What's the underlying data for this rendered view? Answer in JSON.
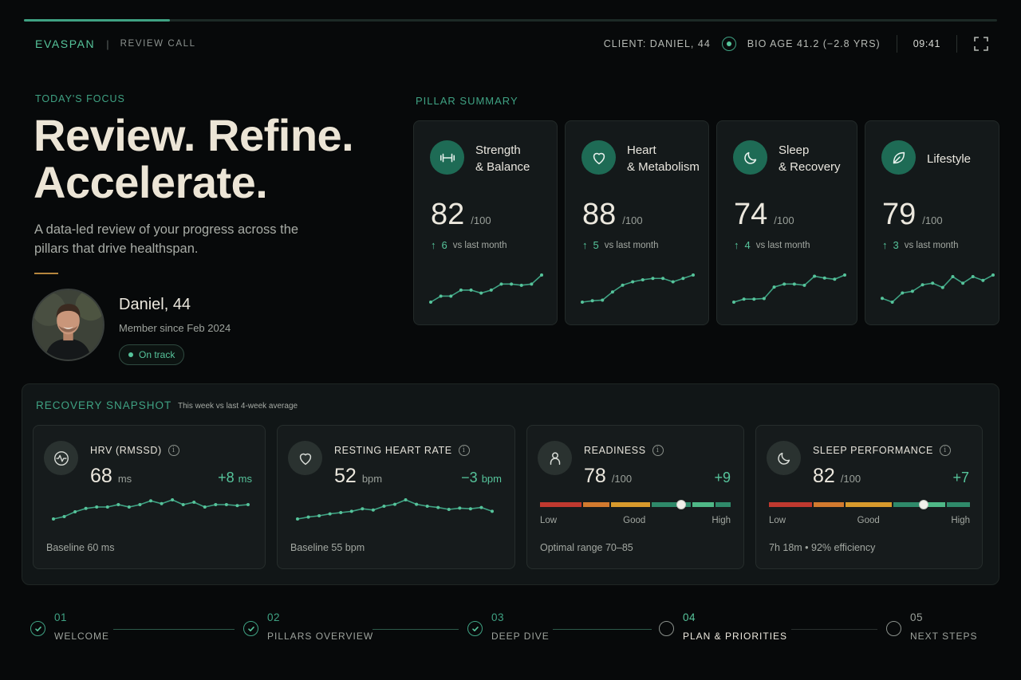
{
  "header": {
    "brand": "EVASPAN",
    "separator": "|",
    "section": "REVIEW CALL",
    "client": "CLIENT: DANIEL, 44",
    "bio_age": "BIO AGE 41.2 (−2.8 YRS)",
    "time": "09:41",
    "session_progress": 0.15
  },
  "hero": {
    "focus_label": "TODAY'S FOCUS",
    "title_line1": "Review. Refine.",
    "title_line2": "Accelerate.",
    "subtitle": "A data-led review of your progress across the pillars that drive healthspan."
  },
  "profile": {
    "name": "Daniel, 44",
    "member_since": "Member since Feb 2024",
    "status": "On track"
  },
  "pillar_summary": {
    "label": "PILLAR SUMMARY",
    "pillars": [
      {
        "title": "Strength\n& Balance",
        "icon": "dumbbell-icon",
        "score": "82",
        "denominator": "/100",
        "delta": "6",
        "delta_text": "vs last month",
        "trend": [
          2,
          3,
          3,
          4,
          4,
          3.5,
          4,
          5,
          5,
          4.8,
          5,
          6.5
        ]
      },
      {
        "title": "Heart\n& Metabolism",
        "icon": "heart-icon",
        "score": "88",
        "denominator": "/100",
        "delta": "5",
        "delta_text": "vs last month",
        "trend": [
          2,
          2.2,
          2.3,
          3.5,
          4.5,
          5,
          5.3,
          5.5,
          5.5,
          5,
          5.5,
          6
        ]
      },
      {
        "title": "Sleep\n& Recovery",
        "icon": "moon-icon",
        "score": "74",
        "denominator": "/100",
        "delta": "4",
        "delta_text": "vs last month",
        "trend": [
          2,
          2.5,
          2.5,
          2.6,
          4.5,
          5,
          5,
          4.8,
          6.3,
          6,
          5.8,
          6.5
        ]
      },
      {
        "title": "Lifestyle",
        "icon": "leaf-icon",
        "score": "79",
        "denominator": "/100",
        "delta": "3",
        "delta_text": "vs last month",
        "trend": [
          2.5,
          1.8,
          3.5,
          3.8,
          5,
          5.3,
          4.5,
          6.5,
          5.3,
          6.5,
          5.8,
          6.8
        ]
      }
    ]
  },
  "recovery": {
    "label": "RECOVERY SNAPSHOT",
    "subtitle": "This week vs last 4-week average",
    "metrics": [
      {
        "title": "HRV (RMSSD)",
        "icon": "pulse-icon",
        "value": "68",
        "unit": "ms",
        "delta": "+8",
        "delta_unit": "ms",
        "footer": "Baseline 60 ms",
        "trend": [
          1,
          1.5,
          2.5,
          3.2,
          3.5,
          3.5,
          4,
          3.5,
          4,
          4.8,
          4.2,
          5,
          4,
          4.5,
          3.5,
          4,
          4,
          3.8,
          4
        ]
      },
      {
        "title": "RESTING HEART RATE",
        "icon": "heart-icon",
        "value": "52",
        "unit": "bpm",
        "delta": "−3",
        "delta_unit": "bpm",
        "footer": "Baseline 55 bpm",
        "trend": [
          1,
          1.3,
          1.5,
          1.8,
          2,
          2.2,
          2.6,
          2.4,
          3,
          3.3,
          4,
          3.3,
          3,
          2.8,
          2.5,
          2.7,
          2.6,
          2.8,
          2.2
        ]
      },
      {
        "title": "READINESS",
        "icon": "person-icon",
        "value": "78",
        "unit": "/100",
        "delta": "+9",
        "footer": "Optimal range 70–85",
        "gauge_level": 0.74,
        "gauge_labels": [
          "Low",
          "Good",
          "High"
        ]
      },
      {
        "title": "SLEEP PERFORMANCE",
        "icon": "moon-icon",
        "value": "82",
        "unit": "/100",
        "delta": "+7",
        "footer": "7h 18m  •  92% efficiency",
        "gauge_level": 0.77,
        "gauge_labels": [
          "Low",
          "Good",
          "High"
        ]
      }
    ]
  },
  "steps": [
    {
      "num": "01",
      "label": "WELCOME",
      "state": "done"
    },
    {
      "num": "02",
      "label": "PILLARS OVERVIEW",
      "state": "done"
    },
    {
      "num": "03",
      "label": "DEEP DIVE",
      "state": "done"
    },
    {
      "num": "04",
      "label": "PLAN & PRIORITIES",
      "state": "active"
    },
    {
      "num": "05",
      "label": "NEXT STEPS",
      "state": "pending"
    }
  ],
  "colors": {
    "accent": "#3fa283",
    "accent_bright": "#56c49b",
    "background": "#07090a",
    "card": "#14191a",
    "title_cream": "#ece5d6"
  }
}
